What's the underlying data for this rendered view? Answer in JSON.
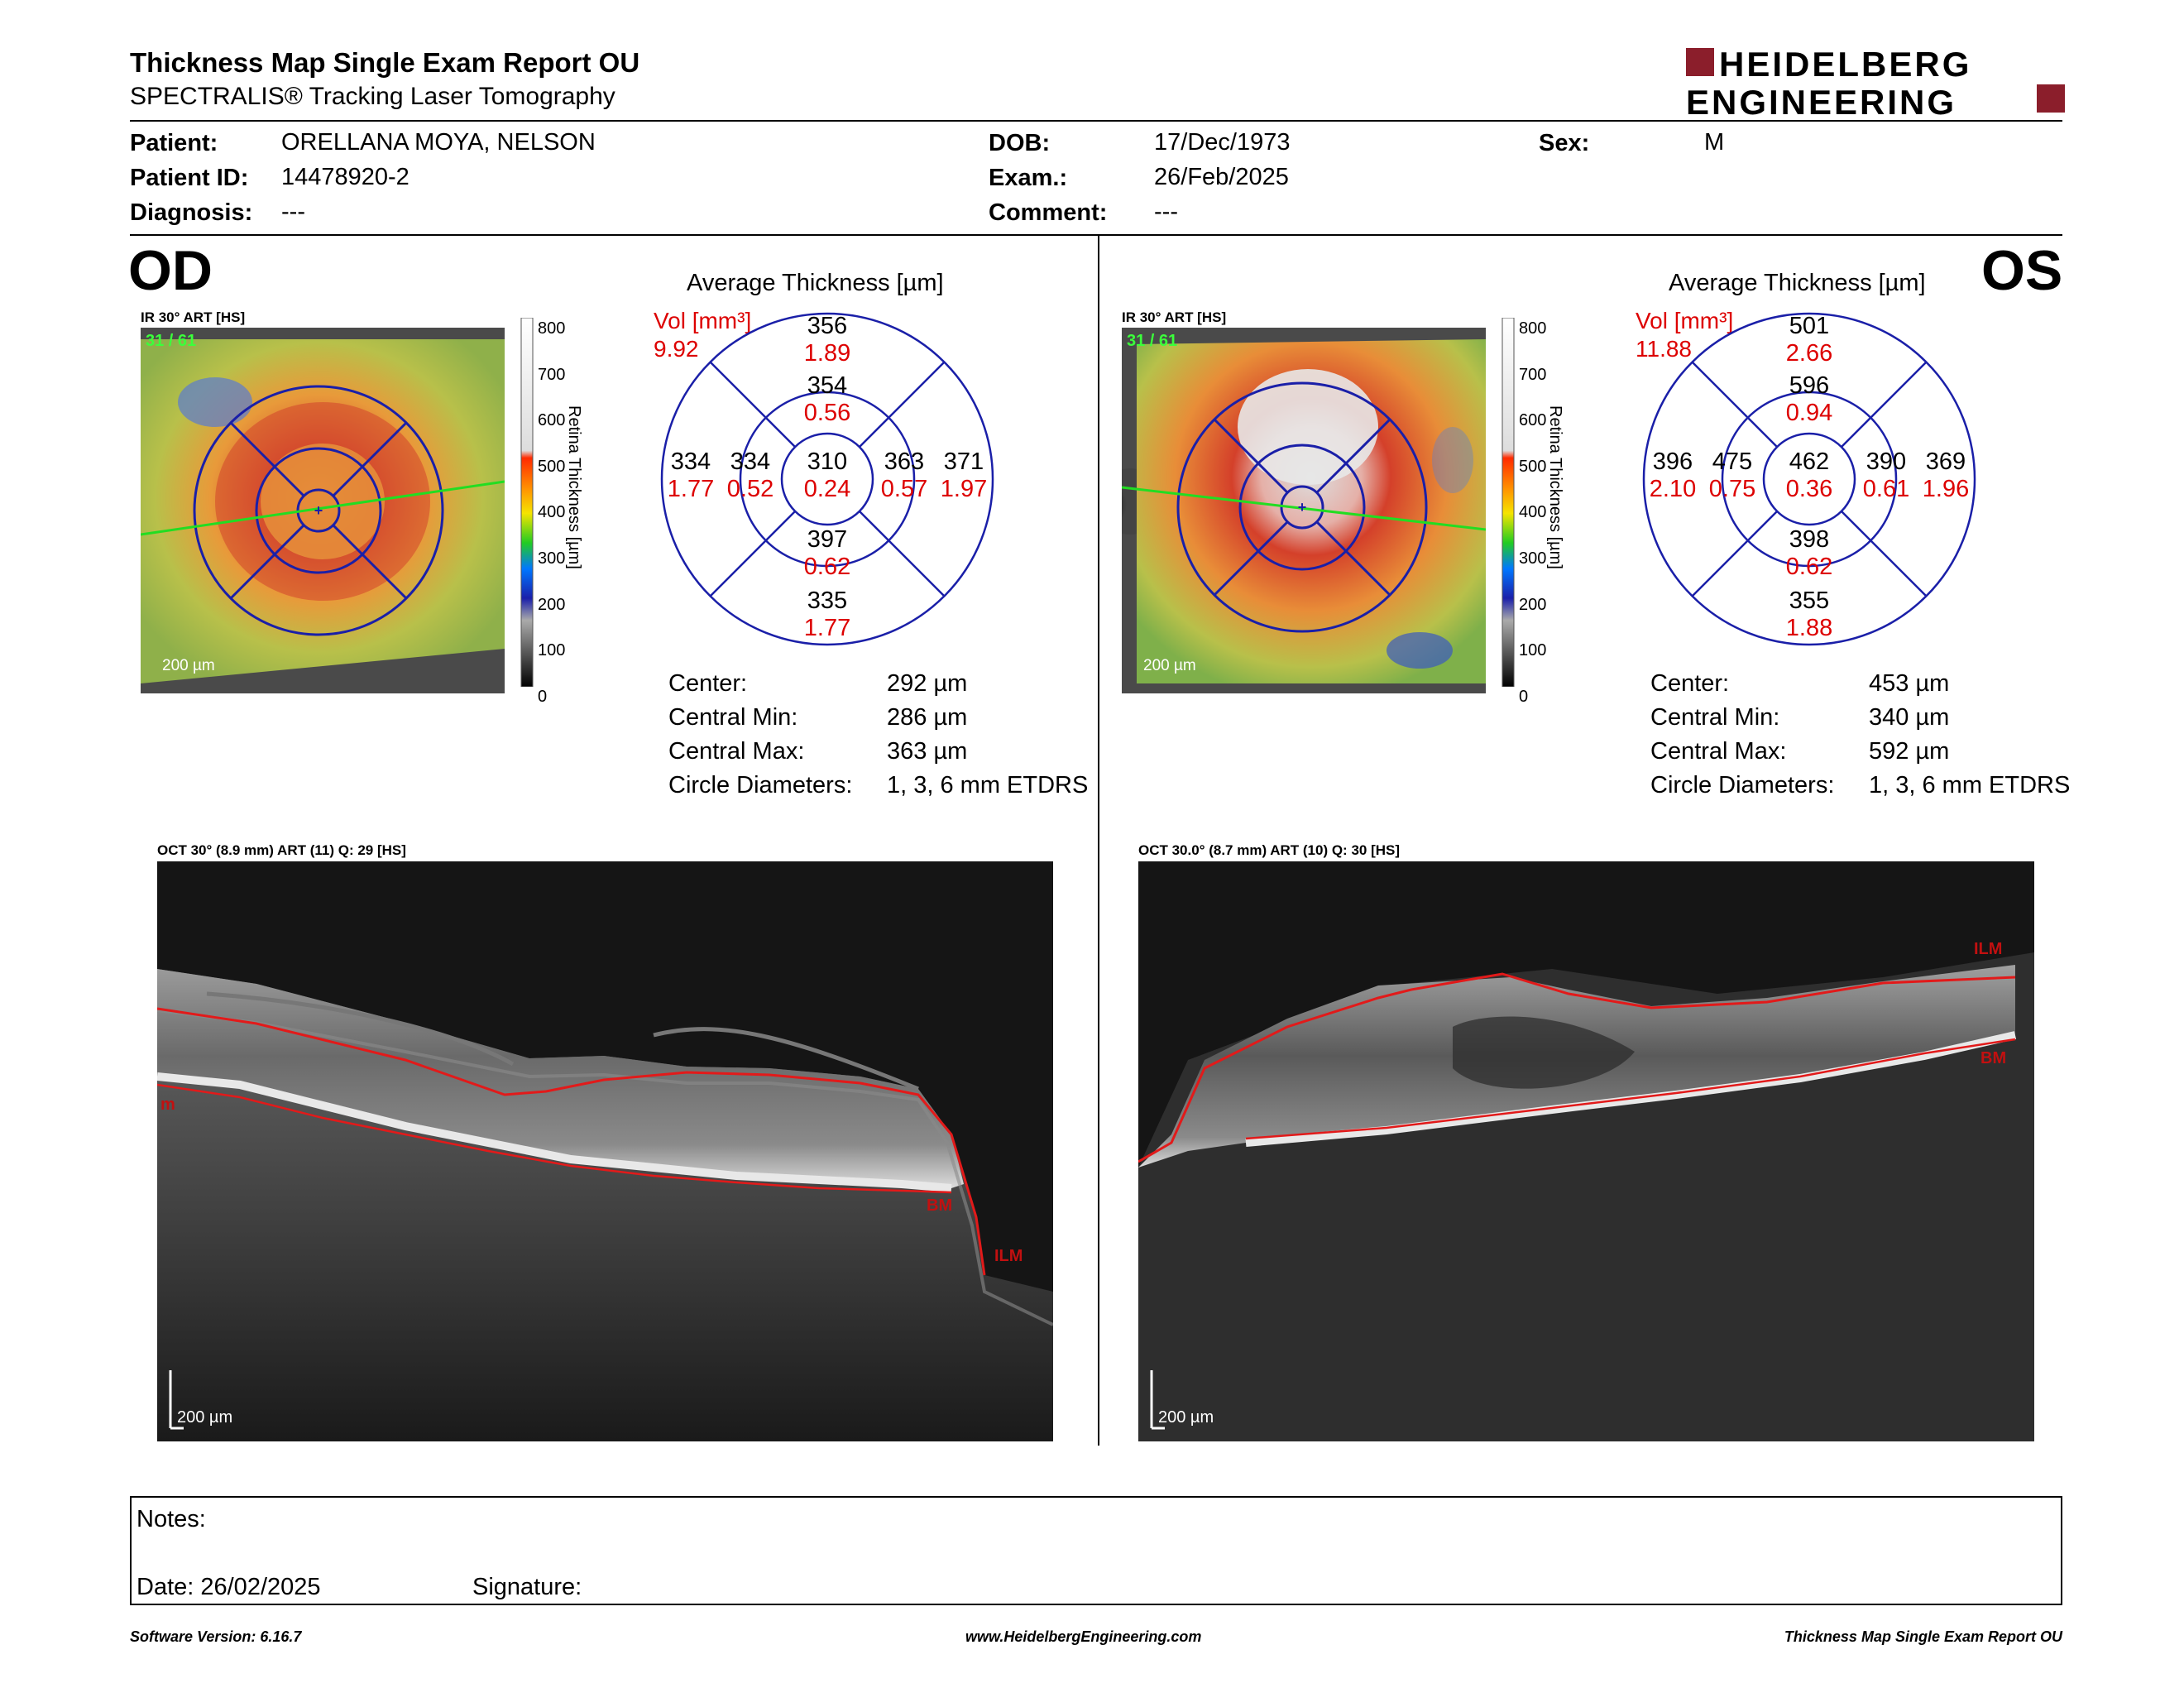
{
  "header": {
    "title": "Thickness Map Single Exam Report OU",
    "subtitle": "SPECTRALIS® Tracking Laser Tomography",
    "logo_line1": "HEIDELBERG",
    "logo_line2": "ENGINEERING",
    "brand_color": "#8b1e2b"
  },
  "patient": {
    "patient_label": "Patient:",
    "patient_value": "ORELLANA MOYA, NELSON",
    "id_label": "Patient ID:",
    "id_value": "14478920-2",
    "diagnosis_label": "Diagnosis:",
    "diagnosis_value": "---",
    "dob_label": "DOB:",
    "dob_value": "17/Dec/1973",
    "exam_label": "Exam.:",
    "exam_value": "26/Feb/2025",
    "comment_label": "Comment:",
    "comment_value": "---",
    "sex_label": "Sex:",
    "sex_value": "M"
  },
  "od": {
    "eye": "OD",
    "ir_label": "IR 30° ART [HS]",
    "frame_label": "31 / 61",
    "scale_label": "200 µm",
    "avg_title": "Average Thickness [µm]",
    "vol_label": "Vol [mm³]",
    "vol_value": "9.92",
    "sectors": {
      "outer_sup": [
        "356",
        "1.89"
      ],
      "inner_sup": [
        "354",
        "0.56"
      ],
      "outer_temp": [
        "334",
        "1.77"
      ],
      "inner_temp": [
        "334",
        "0.52"
      ],
      "center": [
        "310",
        "0.24"
      ],
      "inner_nas": [
        "363",
        "0.57"
      ],
      "outer_nas": [
        "371",
        "1.97"
      ],
      "inner_inf": [
        "397",
        "0.62"
      ],
      "outer_inf": [
        "335",
        "1.77"
      ]
    },
    "center_label": "Center:",
    "center_value": "292 µm",
    "cmin_label": "Central Min:",
    "cmin_value": "286 µm",
    "cmax_label": "Central Max:",
    "cmax_value": "363 µm",
    "circ_label": "Circle Diameters:",
    "circ_value": "1, 3, 6 mm ETDRS",
    "oct_label": "OCT 30° (8.9 mm) ART (11) Q: 29 [HS]",
    "oct_scale": "200 µm",
    "oct_tags": [
      "m",
      "BM",
      "ILM"
    ]
  },
  "os": {
    "eye": "OS",
    "ir_label": "IR 30° ART [HS]",
    "frame_label": "31 / 61",
    "scale_label": "200 µm",
    "avg_title": "Average Thickness [µm]",
    "vol_label": "Vol [mm³]",
    "vol_value": "11.88",
    "sectors": {
      "outer_sup": [
        "501",
        "2.66"
      ],
      "inner_sup": [
        "596",
        "0.94"
      ],
      "outer_temp": [
        "396",
        "2.10"
      ],
      "inner_temp": [
        "475",
        "0.75"
      ],
      "center": [
        "462",
        "0.36"
      ],
      "inner_nas": [
        "390",
        "0.61"
      ],
      "outer_nas": [
        "369",
        "1.96"
      ],
      "inner_inf": [
        "398",
        "0.62"
      ],
      "outer_inf": [
        "355",
        "1.88"
      ]
    },
    "center_label": "Center:",
    "center_value": "453 µm",
    "cmin_label": "Central Min:",
    "cmin_value": "340 µm",
    "cmax_label": "Central Max:",
    "cmax_value": "592 µm",
    "circ_label": "Circle Diameters:",
    "circ_value": "1, 3, 6 mm ETDRS",
    "oct_label": "OCT 30.0° (8.7 mm) ART (10) Q: 30 [HS]",
    "oct_scale": "200 µm",
    "oct_tags": [
      "ILM",
      "BM"
    ]
  },
  "colorbar": {
    "ticks": [
      "800",
      "700",
      "600",
      "500",
      "400",
      "300",
      "200",
      "100",
      "0"
    ],
    "title": "Retina Thickness [µm]"
  },
  "notes": {
    "notes_label": "Notes:",
    "date_label": "Date: 26/02/2025",
    "signature_label": "Signature:"
  },
  "footer": {
    "software": "Software Version: 6.16.7",
    "website": "www.HeidelbergEngineering.com",
    "report": "Thickness Map Single Exam Report OU"
  }
}
